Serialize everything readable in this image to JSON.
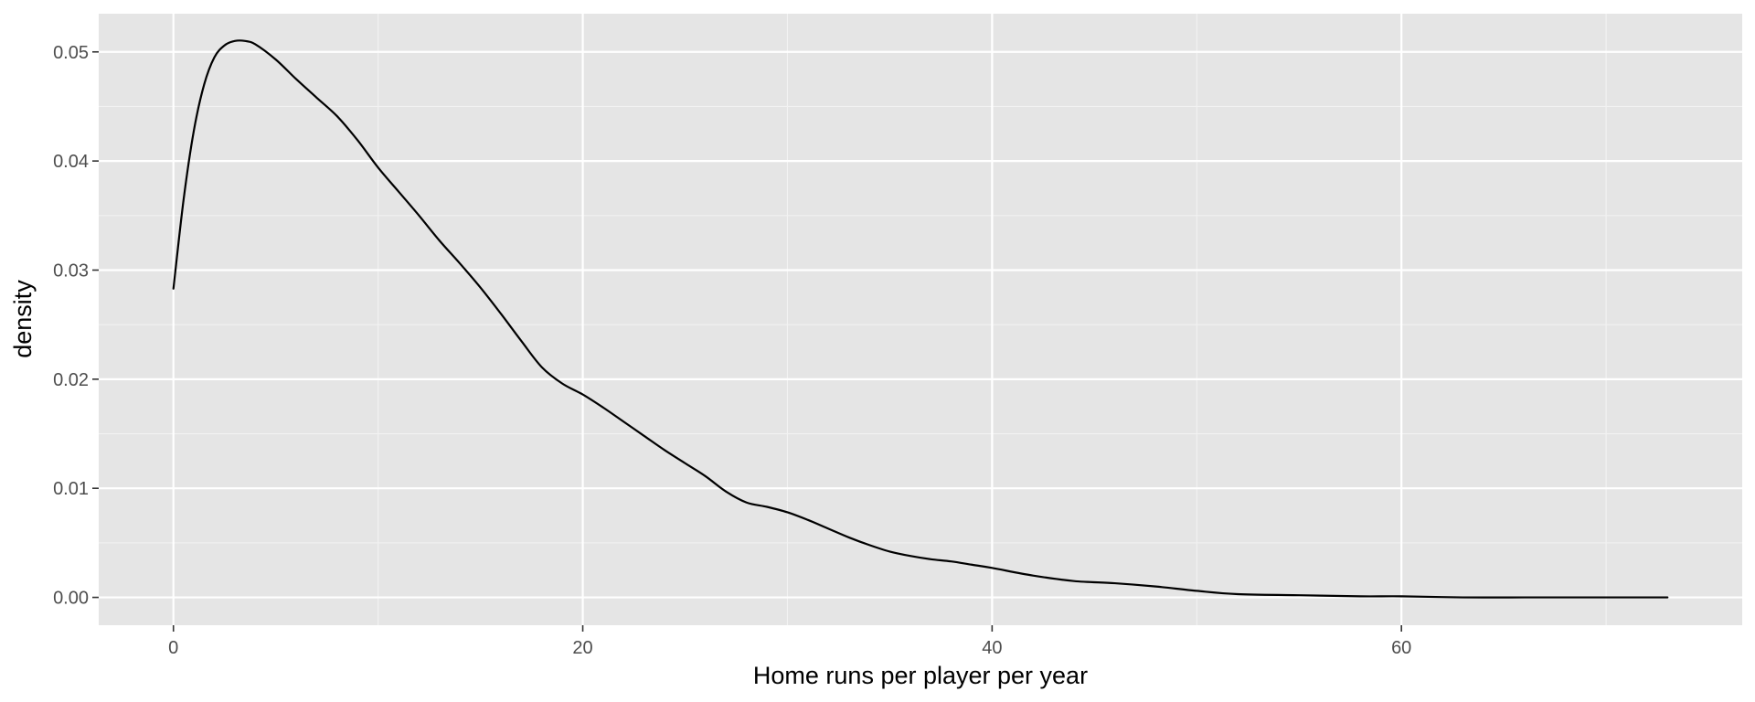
{
  "chart_data": {
    "type": "line",
    "title": "",
    "xlabel": "Home runs per player per year",
    "ylabel": "density",
    "xlim": [
      -3.65,
      76.65
    ],
    "ylim": [
      -0.00255,
      0.0535
    ],
    "x_ticks": [
      0,
      20,
      40,
      60
    ],
    "x_tick_labels": [
      "0",
      "20",
      "40",
      "60"
    ],
    "y_ticks": [
      0.0,
      0.01,
      0.02,
      0.03,
      0.04,
      0.05
    ],
    "y_tick_labels": [
      "0.00",
      "0.01",
      "0.02",
      "0.03",
      "0.04",
      "0.05"
    ],
    "grid": true,
    "legend": "none",
    "colors": {
      "panel": "#e5e5e5",
      "grid": "#ffffff",
      "line": "#000000",
      "tick_text": "#4d4d4d"
    },
    "series": [
      {
        "x": [
          0,
          0.5,
          1,
          1.5,
          2,
          2.5,
          3,
          3.5,
          4,
          5,
          6,
          7,
          8,
          9,
          10,
          11,
          12,
          13,
          14,
          15,
          16,
          17,
          18,
          19,
          20,
          21,
          22,
          23,
          24,
          25,
          26,
          27,
          28,
          29,
          30,
          31,
          32,
          33,
          34,
          35,
          36,
          37,
          38,
          39,
          40,
          42,
          44,
          46,
          48,
          50,
          52,
          55,
          58,
          60,
          63,
          66,
          70,
          73
        ],
        "y": [
          0.0283,
          0.0365,
          0.0428,
          0.047,
          0.0495,
          0.0506,
          0.051,
          0.051,
          0.0507,
          0.0493,
          0.0475,
          0.0458,
          0.0441,
          0.0419,
          0.0394,
          0.0372,
          0.035,
          0.0327,
          0.0306,
          0.0284,
          0.026,
          0.0235,
          0.0211,
          0.0196,
          0.0186,
          0.0174,
          0.0161,
          0.0148,
          0.0135,
          0.0123,
          0.0111,
          0.0097,
          0.0087,
          0.0083,
          0.0078,
          0.0071,
          0.0063,
          0.0055,
          0.0048,
          0.0042,
          0.0038,
          0.0035,
          0.0033,
          0.003,
          0.0027,
          0.002,
          0.0015,
          0.0013,
          0.001,
          0.0006,
          0.0003,
          0.0002,
          0.0001,
          0.0001,
          0.0,
          0.0,
          0.0,
          0.0
        ]
      }
    ]
  }
}
